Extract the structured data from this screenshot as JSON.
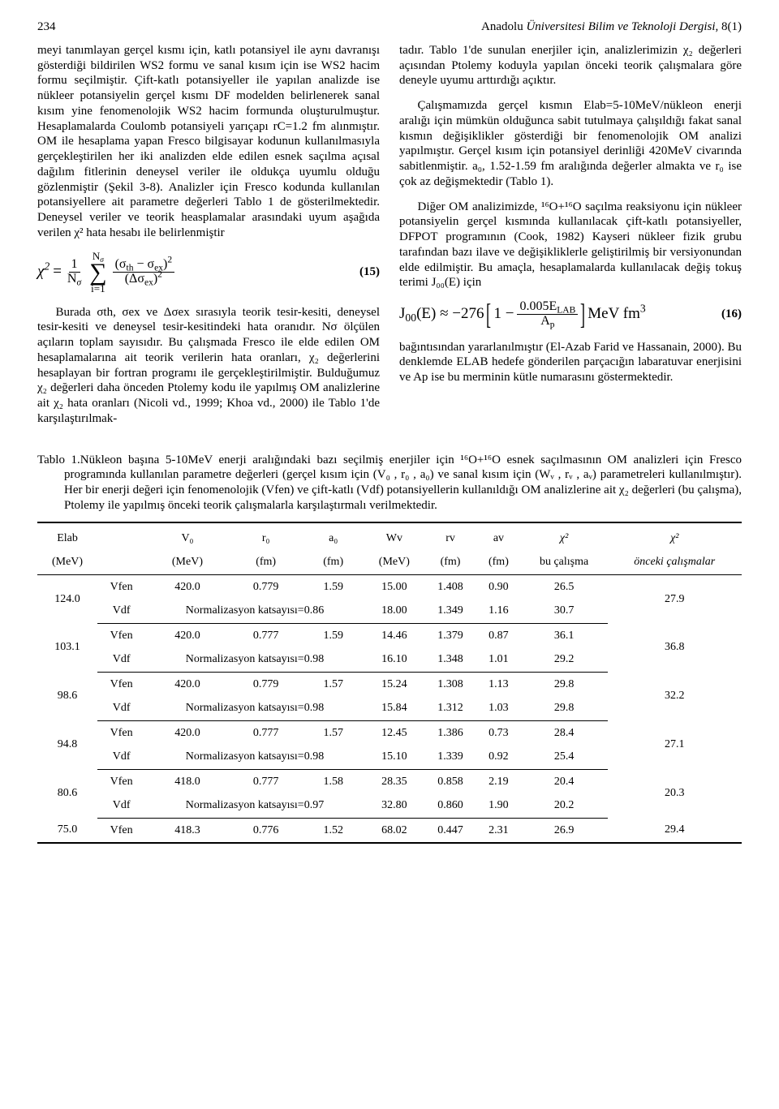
{
  "header": {
    "page_number": "234",
    "journal_plain1": "Anadolu ",
    "journal_italic": "Üniversitesi Bilim ve Teknoloji Dergisi,",
    "journal_plain2": " 8(1)"
  },
  "left_col": {
    "p1": "meyi tanımlayan gerçel kısmı için, katlı potansiyel ile aynı davranışı gösterdiği bildirilen WS2 formu ve sanal kısım için ise WS2 hacim formu seçilmiştir. Çift-katlı potansiyeller ile yapılan analizde ise nükleer potansiyelin gerçel kısmı DF modelden belirlenerek sanal kısım yine fenomenolojik WS2 hacim formunda oluşturulmuştur. Hesaplamalarda Coulomb potansiyeli yarıçapı rC=1.2 fm alınmıştır. OM ile hesaplama yapan Fresco bilgisayar kodunun kullanılmasıyla gerçekleştirilen her iki analizden elde edilen esnek saçılma açısal dağılım fitlerinin deneysel veriler ile oldukça uyumlu olduğu gözlenmiştir (Şekil 3-8). Analizler için Fresco kodunda kullanılan potansiyellere ait parametre değerleri Tablo 1 de gösterilmektedir. Deneysel veriler ve teorik heasplamalar arasındaki uyum aşağıda verilen χ² hata hesabı ile belirlenmiştir",
    "p2": "Burada σth, σex ve Δσex sırasıyla teorik tesir-kesiti, deneysel tesir-kesiti ve deneysel tesir-kesitindeki hata oranıdır. Nσ ölçülen açıların toplam sayısıdır. Bu çalışmada Fresco ile elde edilen OM hesaplamalarına ait teorik verilerin hata oranları, χ₂ değerlerini hesaplayan bir fortran programı ile gerçekleştirilmiştir. Bulduğumuz χ₂ değerleri daha önceden Ptolemy kodu ile yapılmış OM analizlerine ait χ₂ hata oranları (Nicoli vd., 1999; Khoa vd., 2000) ile Tablo 1'de karşılaştırılmak-"
  },
  "right_col": {
    "p1": "tadır. Tablo 1'de sunulan enerjiler için, analizlerimizin χ₂ değerleri açısından Ptolemy koduyla yapılan önceki teorik çalışmalara göre deneyle uyumu arttırdığı açıktır.",
    "p2": "Çalışmamızda gerçel kısmın Elab=5-10MeV/nükleon enerji aralığı için mümkün olduğunca sabit tutulmaya çalışıldığı fakat sanal kısmın değişiklikler gösterdiği bir fenomenolojik OM analizi yapılmıştır. Gerçel kısım için potansiyel derinliği 420MeV civarında sabitlenmiştir. a₀, 1.52-1.59 fm aralığında değerler almakta ve r₀ ise çok az değişmektedir (Tablo 1).",
    "p3": "Diğer OM analizimizde, ¹⁶O+¹⁶O saçılma reaksiyonu için nükleer potansiyelin gerçel kısmında kullanılacak çift-katlı potansiyeller, DFPOT programının (Cook, 1982) Kayseri nükleer fizik grubu tarafından bazı ilave ve değişikliklerle geliştirilmiş bir versiyonundan elde edilmiştir. Bu amaçla, hesaplamalarda kullanılacak değiş tokuş terimi J₀₀(E) için",
    "p4": "bağıntısından yararlanılmıştır (El-Azab Farid ve Hassanain, 2000). Bu denklemde ELAB hedefe gönderilen parçacığın labaratuvar enerjisini ve Ap ise bu merminin kütle numarasını göstermektedir."
  },
  "equations": {
    "eq15": {
      "num": "(15)",
      "chi2": "χ",
      "one": "1",
      "Nsigma": "N",
      "sigma_top": "N",
      "sigma_bot": "i=1",
      "frac_top_a": "(σ",
      "frac_top_th": "th",
      "frac_top_minus": " − σ",
      "frac_top_ex": "ex",
      "frac_top_b": ")",
      "frac_bot_a": "(Δσ",
      "frac_bot_ex": "ex",
      "frac_bot_b": ")"
    },
    "eq16": {
      "num": "(16)",
      "lhs_a": "J",
      "lhs_sub": "00",
      "lhs_b": "(E) ≈ −276",
      "one": "1 −",
      "top": "0.005E",
      "top_sub": "LAB",
      "bot": "A",
      "bot_sub": "p",
      "unit": " MeV fm"
    }
  },
  "table": {
    "caption": "Tablo 1.Nükleon başına 5-10MeV enerji aralığındaki bazı seçilmiş enerjiler için ¹⁶O+¹⁶O esnek saçılmasının OM analizleri için Fresco programında kullanılan parametre değerleri (gerçel kısım için (V₀ , r₀ , a₀) ve sanal kısım için (Wᵥ , rᵥ , aᵥ) parametreleri kullanılmıştır). Her bir enerji değeri için fenomenolojik (Vfen) ve çift-katlı (Vdf) potansiyellerin kullanıldığı OM analizlerine ait χ₂ değerleri (bu çalışma), Ptolemy ile yapılmış önceki teorik çalışmalarla karşılaştırmalı verilmektedir.",
    "head1": [
      "Elab",
      "",
      "V₀",
      "r₀",
      "a₀",
      "Wv",
      "rv",
      "av",
      "χ²",
      "χ²"
    ],
    "head2": [
      "(MeV)",
      "",
      "(MeV)",
      "(fm)",
      "(fm)",
      "(MeV)",
      "(fm)",
      "(fm)",
      "bu çalışma",
      "önceki çalışmalar"
    ],
    "groups": [
      {
        "elab": "124.0",
        "rows": [
          {
            "pot": "Vfen",
            "v0": "420.0",
            "r0": "0.779",
            "a0": "1.59",
            "wv": "15.00",
            "rv": "1.408",
            "av": "0.90",
            "chi": "26.5"
          },
          {
            "pot": "Vdf",
            "norm": "Normalizasyon katsayısı=0.86",
            "wv": "18.00",
            "rv": "1.349",
            "av": "1.16",
            "chi": "30.7"
          }
        ],
        "chi_prev": "27.9"
      },
      {
        "elab": "103.1",
        "rows": [
          {
            "pot": "Vfen",
            "v0": "420.0",
            "r0": "0.777",
            "a0": "1.59",
            "wv": "14.46",
            "rv": "1.379",
            "av": "0.87",
            "chi": "36.1"
          },
          {
            "pot": "Vdf",
            "norm": "Normalizasyon katsayısı=0.98",
            "wv": "16.10",
            "rv": "1.348",
            "av": "1.01",
            "chi": "29.2"
          }
        ],
        "chi_prev": "36.8"
      },
      {
        "elab": "98.6",
        "rows": [
          {
            "pot": "Vfen",
            "v0": "420.0",
            "r0": "0.779",
            "a0": "1.57",
            "wv": "15.24",
            "rv": "1.308",
            "av": "1.13",
            "chi": "29.8"
          },
          {
            "pot": "Vdf",
            "norm": "Normalizasyon katsayısı=0.98",
            "wv": "15.84",
            "rv": "1.312",
            "av": "1.03",
            "chi": "29.8"
          }
        ],
        "chi_prev": "32.2"
      },
      {
        "elab": "94.8",
        "rows": [
          {
            "pot": "Vfen",
            "v0": "420.0",
            "r0": "0.777",
            "a0": "1.57",
            "wv": "12.45",
            "rv": "1.386",
            "av": "0.73",
            "chi": "28.4"
          },
          {
            "pot": "Vdf",
            "norm": "Normalizasyon katsayısı=0.98",
            "wv": "15.10",
            "rv": "1.339",
            "av": "0.92",
            "chi": "25.4"
          }
        ],
        "chi_prev": "27.1"
      },
      {
        "elab": "80.6",
        "rows": [
          {
            "pot": "Vfen",
            "v0": "418.0",
            "r0": "0.777",
            "a0": "1.58",
            "wv": "28.35",
            "rv": "0.858",
            "av": "2.19",
            "chi": "20.4"
          },
          {
            "pot": "Vdf",
            "norm": "Normalizasyon katsayısı=0.97",
            "wv": "32.80",
            "rv": "0.860",
            "av": "1.90",
            "chi": "20.2"
          }
        ],
        "chi_prev": "20.3"
      }
    ],
    "last_row": {
      "elab": "75.0",
      "pot": "Vfen",
      "v0": "418.3",
      "r0": "0.776",
      "a0": "1.52",
      "wv": "68.02",
      "rv": "0.447",
      "av": "2.31",
      "chi": "26.9",
      "chi_prev": "29.4"
    }
  }
}
